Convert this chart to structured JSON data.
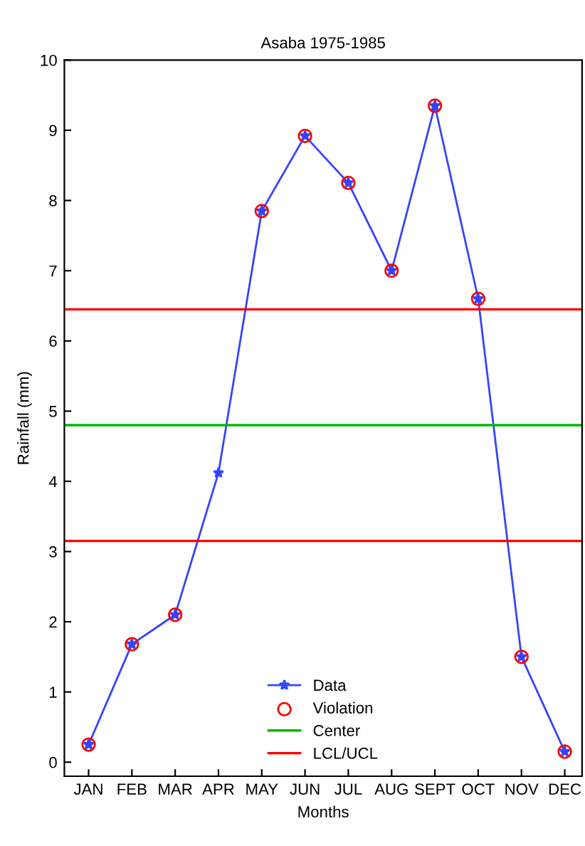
{
  "chart_data": {
    "type": "line",
    "title": "Asaba 1975-1985",
    "xlabel": "Months",
    "ylabel": "Rainfall (mm)",
    "categories": [
      "JAN",
      "FEB",
      "MAR",
      "APR",
      "MAY",
      "JUN",
      "JUL",
      "AUG",
      "SEPT",
      "OCT",
      "NOV",
      "DEC"
    ],
    "series": [
      {
        "name": "Data",
        "color": "#3344ff",
        "marker": "star",
        "values": [
          0.25,
          1.68,
          2.1,
          4.12,
          7.85,
          8.92,
          8.25,
          7.0,
          9.35,
          6.6,
          1.5,
          0.15
        ]
      },
      {
        "name": "Violation",
        "type": "scatter",
        "color": "#ff0000",
        "marker": "circle",
        "x": [
          "JAN",
          "FEB",
          "MAR",
          "APR",
          "MAY",
          "JUN",
          "JUL",
          "AUG",
          "SEPT",
          "OCT",
          "NOV",
          "DEC"
        ],
        "values": [
          0.25,
          1.68,
          2.1,
          null,
          7.85,
          8.92,
          8.25,
          7.0,
          9.35,
          6.6,
          1.5,
          0.15
        ]
      }
    ],
    "ref_lines": [
      {
        "axis": "y",
        "value": 4.8,
        "label": "Center",
        "color": "#00bb00"
      },
      {
        "axis": "y",
        "value": 6.45,
        "label": "LCL/UCL",
        "color": "#ff0000"
      },
      {
        "axis": "y",
        "value": 3.15,
        "color": "#ff0000"
      }
    ],
    "ylim": [
      -0.2,
      10
    ],
    "yticks": [
      0,
      1,
      2,
      3,
      4,
      5,
      6,
      7,
      8,
      9,
      10
    ],
    "grid": false,
    "legend": "bottom"
  }
}
